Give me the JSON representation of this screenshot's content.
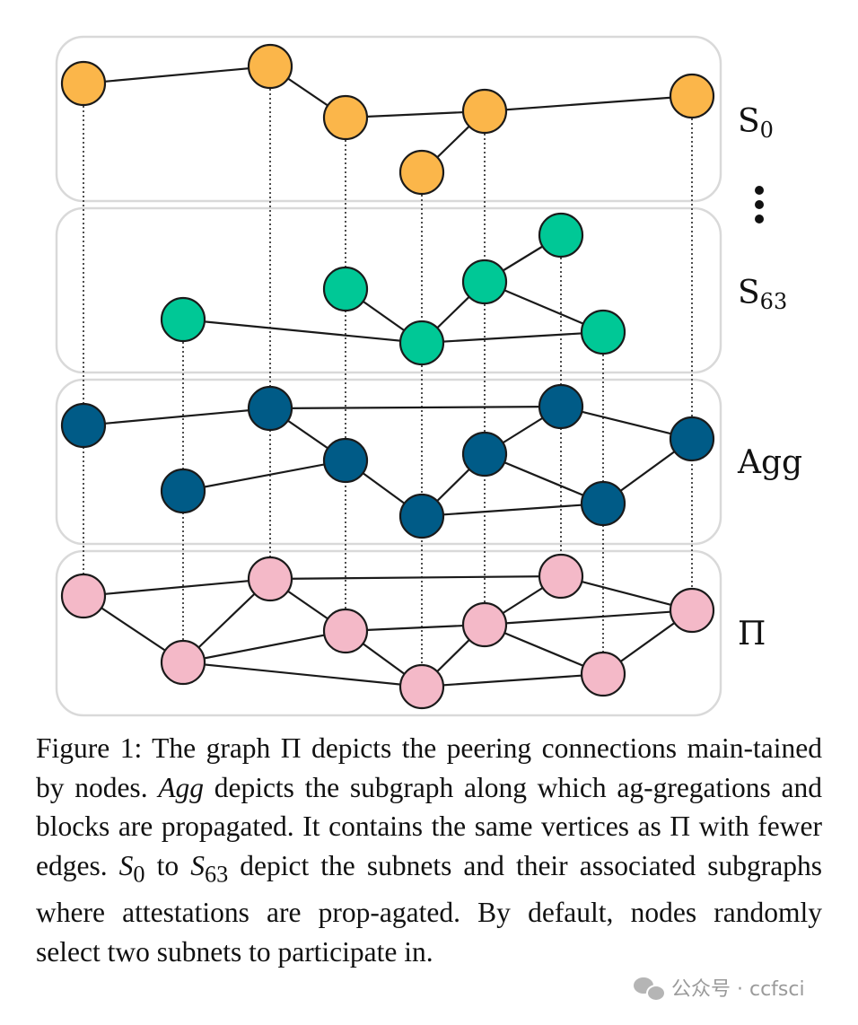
{
  "colors": {
    "S0": "#fbb64a",
    "S63": "#00c896",
    "Agg": "#005b87",
    "Pi": "#f4b9c8"
  },
  "layers": {
    "S0": {
      "label": "S",
      "sub": "0"
    },
    "ellipsis": "⋮",
    "S63": {
      "label": "S",
      "sub": "63"
    },
    "Agg": {
      "label": "Agg"
    },
    "Pi": {
      "label": "Π"
    }
  },
  "caption": {
    "part1": "Figure 1: The graph Π depicts the peering connections main-tained by nodes. ",
    "agg": "Agg",
    "part2": " depicts the subgraph along which ag-gregations and blocks are propagated. It contains the same vertices as Π with fewer edges. ",
    "s0_letter": "S",
    "s0_sub": "0",
    "mid": " to ",
    "s63_letter": "S",
    "s63_sub": "63",
    "part3": " depict the subnets and their associated subgraphs where attestations are prop-agated. By default, nodes randomly select two subnets to participate in."
  },
  "watermark": {
    "text": "公众号 · ccfsci",
    "icon": "wechat-icon"
  }
}
